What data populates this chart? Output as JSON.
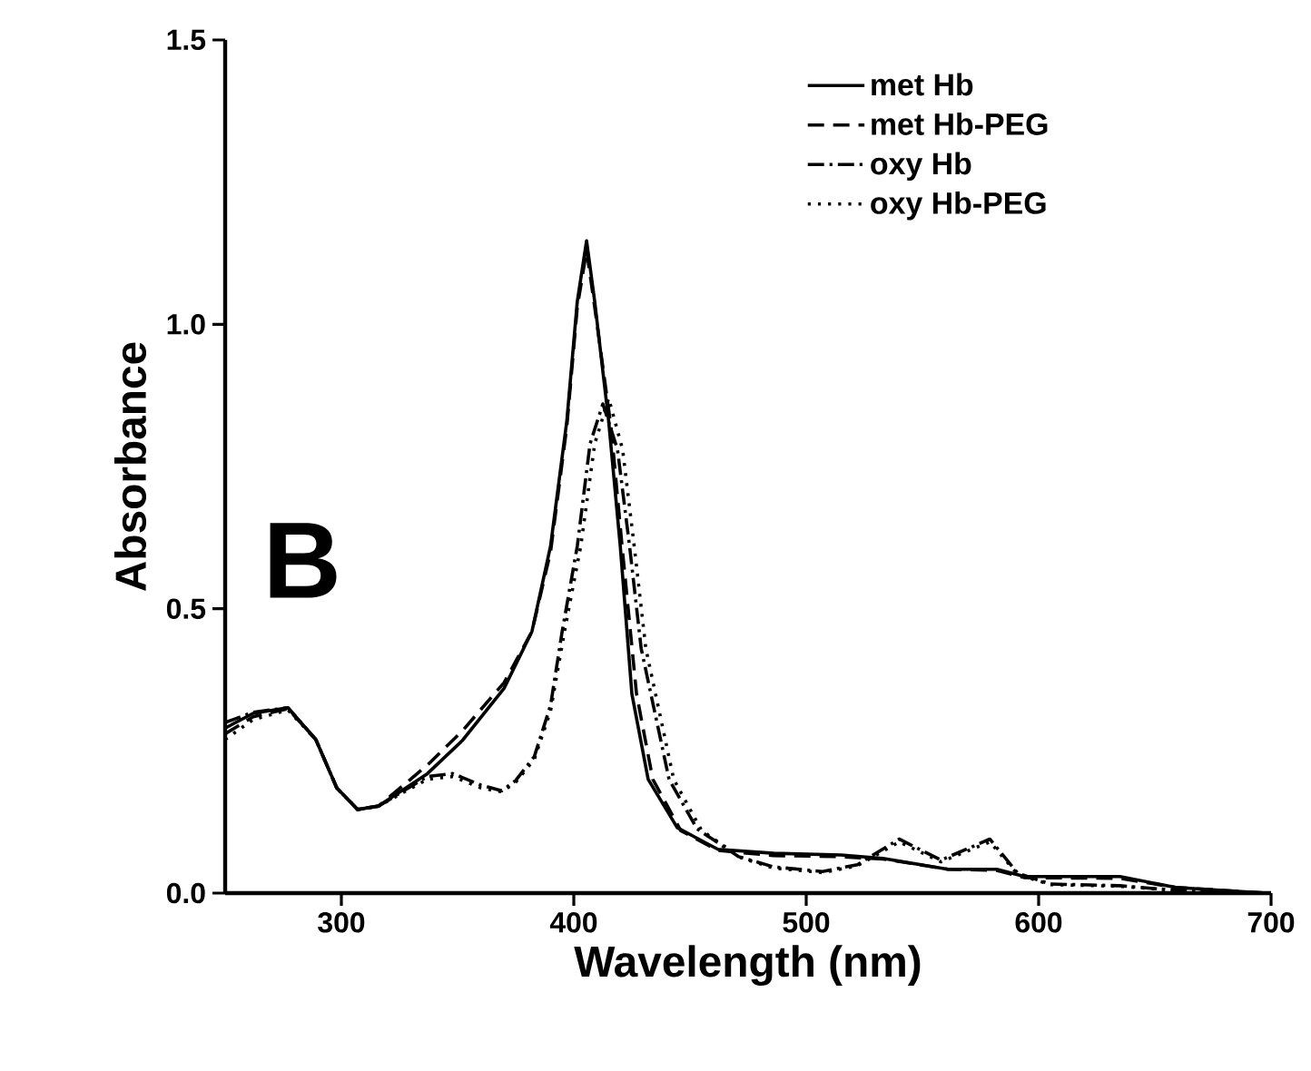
{
  "chart_data": {
    "type": "line",
    "xlabel": "Wavelength (nm)",
    "ylabel": "Absorbance",
    "annotations": [
      "B"
    ],
    "xlim": [
      250,
      700
    ],
    "xticks": [
      300,
      400,
      500,
      600,
      700
    ],
    "ylim": [
      0,
      1.5
    ],
    "yticks": [
      {
        "value": 0,
        "label": "0.0"
      },
      {
        "value": 0.5,
        "label": "0.5"
      },
      {
        "value": 1.0,
        "label": "1.0"
      },
      {
        "value": 1.5,
        "label": "1.5"
      }
    ],
    "legend": "top right",
    "series": [
      {
        "name": "met Hb",
        "color": "#000000",
        "line_style": "solid",
        "x": [
          250,
          262,
          277,
          289,
          298,
          307,
          316,
          337,
          352,
          370,
          382,
          390,
          397,
          401.5,
          405.5,
          409,
          415,
          420,
          425,
          432,
          444.5,
          462,
          486,
          515,
          533,
          561,
          582,
          594,
          635,
          659,
          698
        ],
        "values": [
          0.29,
          0.316,
          0.326,
          0.27,
          0.185,
          0.147,
          0.153,
          0.21,
          0.268,
          0.36,
          0.46,
          0.61,
          0.83,
          1.04,
          1.147,
          1.04,
          0.83,
          0.61,
          0.35,
          0.2,
          0.115,
          0.077,
          0.07,
          0.067,
          0.061,
          0.042,
          0.042,
          0.029,
          0.029,
          0.01,
          0.0
        ]
      },
      {
        "name": "met Hb-PEG",
        "color": "#000000",
        "line_style": "dashed",
        "x": [
          250,
          262,
          277,
          289,
          298,
          307,
          316,
          337,
          352,
          370,
          382,
          390,
          397,
          401.5,
          405.5,
          409,
          416,
          421,
          427,
          434,
          446,
          462,
          486,
          515,
          533,
          561,
          582,
          594,
          635,
          659,
          698
        ],
        "values": [
          0.28,
          0.31,
          0.324,
          0.27,
          0.185,
          0.147,
          0.153,
          0.225,
          0.285,
          0.37,
          0.46,
          0.6,
          0.82,
          1.03,
          1.13,
          1.03,
          0.82,
          0.6,
          0.35,
          0.2,
          0.11,
          0.075,
          0.066,
          0.064,
          0.06,
          0.042,
          0.04,
          0.027,
          0.026,
          0.01,
          0.0
        ]
      },
      {
        "name": "oxy Hb",
        "color": "#000000",
        "line_style": "dashdot",
        "x": [
          250,
          262,
          277,
          289,
          298,
          307,
          316,
          337,
          348,
          360,
          369,
          375,
          383,
          390,
          395,
          401.5,
          407,
          412.5,
          418.8,
          424,
          429,
          441,
          453,
          471,
          486,
          507,
          522,
          540,
          558,
          579,
          591,
          605,
          635,
          665,
          698
        ],
        "values": [
          0.3,
          0.318,
          0.326,
          0.27,
          0.185,
          0.147,
          0.153,
          0.205,
          0.21,
          0.19,
          0.18,
          0.198,
          0.24,
          0.33,
          0.46,
          0.61,
          0.79,
          0.86,
          0.78,
          0.61,
          0.43,
          0.2,
          0.113,
          0.064,
          0.046,
          0.038,
          0.05,
          0.095,
          0.058,
          0.095,
          0.035,
          0.016,
          0.013,
          0.003,
          0.0
        ]
      },
      {
        "name": "oxy Hb-PEG",
        "color": "#000000",
        "line_style": "dotted",
        "x": [
          250,
          262,
          277,
          289,
          298,
          307,
          316,
          337,
          348,
          360,
          369,
          375,
          383,
          390,
          396,
          403,
          409,
          415,
          421,
          426,
          431,
          443,
          455,
          472,
          486,
          507,
          522,
          540,
          558,
          579,
          591,
          605,
          635,
          665,
          698
        ],
        "values": [
          0.27,
          0.305,
          0.322,
          0.27,
          0.185,
          0.147,
          0.153,
          0.2,
          0.205,
          0.185,
          0.178,
          0.195,
          0.235,
          0.32,
          0.46,
          0.61,
          0.79,
          0.87,
          0.78,
          0.61,
          0.43,
          0.2,
          0.11,
          0.062,
          0.044,
          0.036,
          0.048,
          0.09,
          0.055,
          0.09,
          0.033,
          0.015,
          0.012,
          0.003,
          0.0
        ]
      }
    ]
  }
}
